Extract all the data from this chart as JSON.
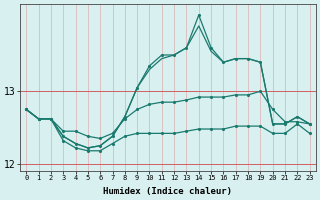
{
  "xlabel": "Humidex (Indice chaleur)",
  "bg_color": "#d8f0f0",
  "line_color": "#1a7a6e",
  "x": [
    0,
    1,
    2,
    3,
    4,
    5,
    6,
    7,
    8,
    9,
    10,
    11,
    12,
    13,
    14,
    15,
    16,
    17,
    18,
    19,
    20,
    21,
    22,
    23
  ],
  "line_top": [
    12.75,
    12.62,
    12.62,
    12.38,
    12.28,
    12.22,
    12.25,
    12.38,
    12.65,
    13.05,
    13.3,
    13.45,
    13.5,
    13.6,
    13.9,
    13.55,
    13.4,
    13.45,
    13.45,
    13.4,
    12.55,
    12.55,
    12.65,
    12.55
  ],
  "line_peak": [
    12.75,
    12.62,
    12.62,
    12.38,
    12.28,
    12.22,
    12.25,
    12.38,
    12.65,
    13.05,
    13.35,
    13.5,
    13.5,
    13.6,
    14.05,
    13.6,
    13.4,
    13.45,
    13.45,
    13.4,
    12.55,
    12.55,
    12.65,
    12.55
  ],
  "line_mid": [
    12.75,
    12.62,
    12.62,
    12.45,
    12.45,
    12.38,
    12.35,
    12.42,
    12.62,
    12.75,
    12.82,
    12.85,
    12.85,
    12.88,
    12.92,
    12.92,
    12.92,
    12.95,
    12.95,
    13.0,
    12.75,
    12.58,
    12.58,
    12.55
  ],
  "line_bot": [
    12.75,
    12.62,
    12.62,
    12.32,
    12.22,
    12.18,
    12.18,
    12.28,
    12.38,
    12.42,
    12.42,
    12.42,
    12.42,
    12.45,
    12.48,
    12.48,
    12.48,
    12.52,
    12.52,
    12.52,
    12.42,
    12.42,
    12.55,
    12.42
  ],
  "ylim": [
    11.9,
    14.2
  ],
  "yticks": [
    12,
    13
  ],
  "xlim": [
    -0.5,
    23.5
  ]
}
